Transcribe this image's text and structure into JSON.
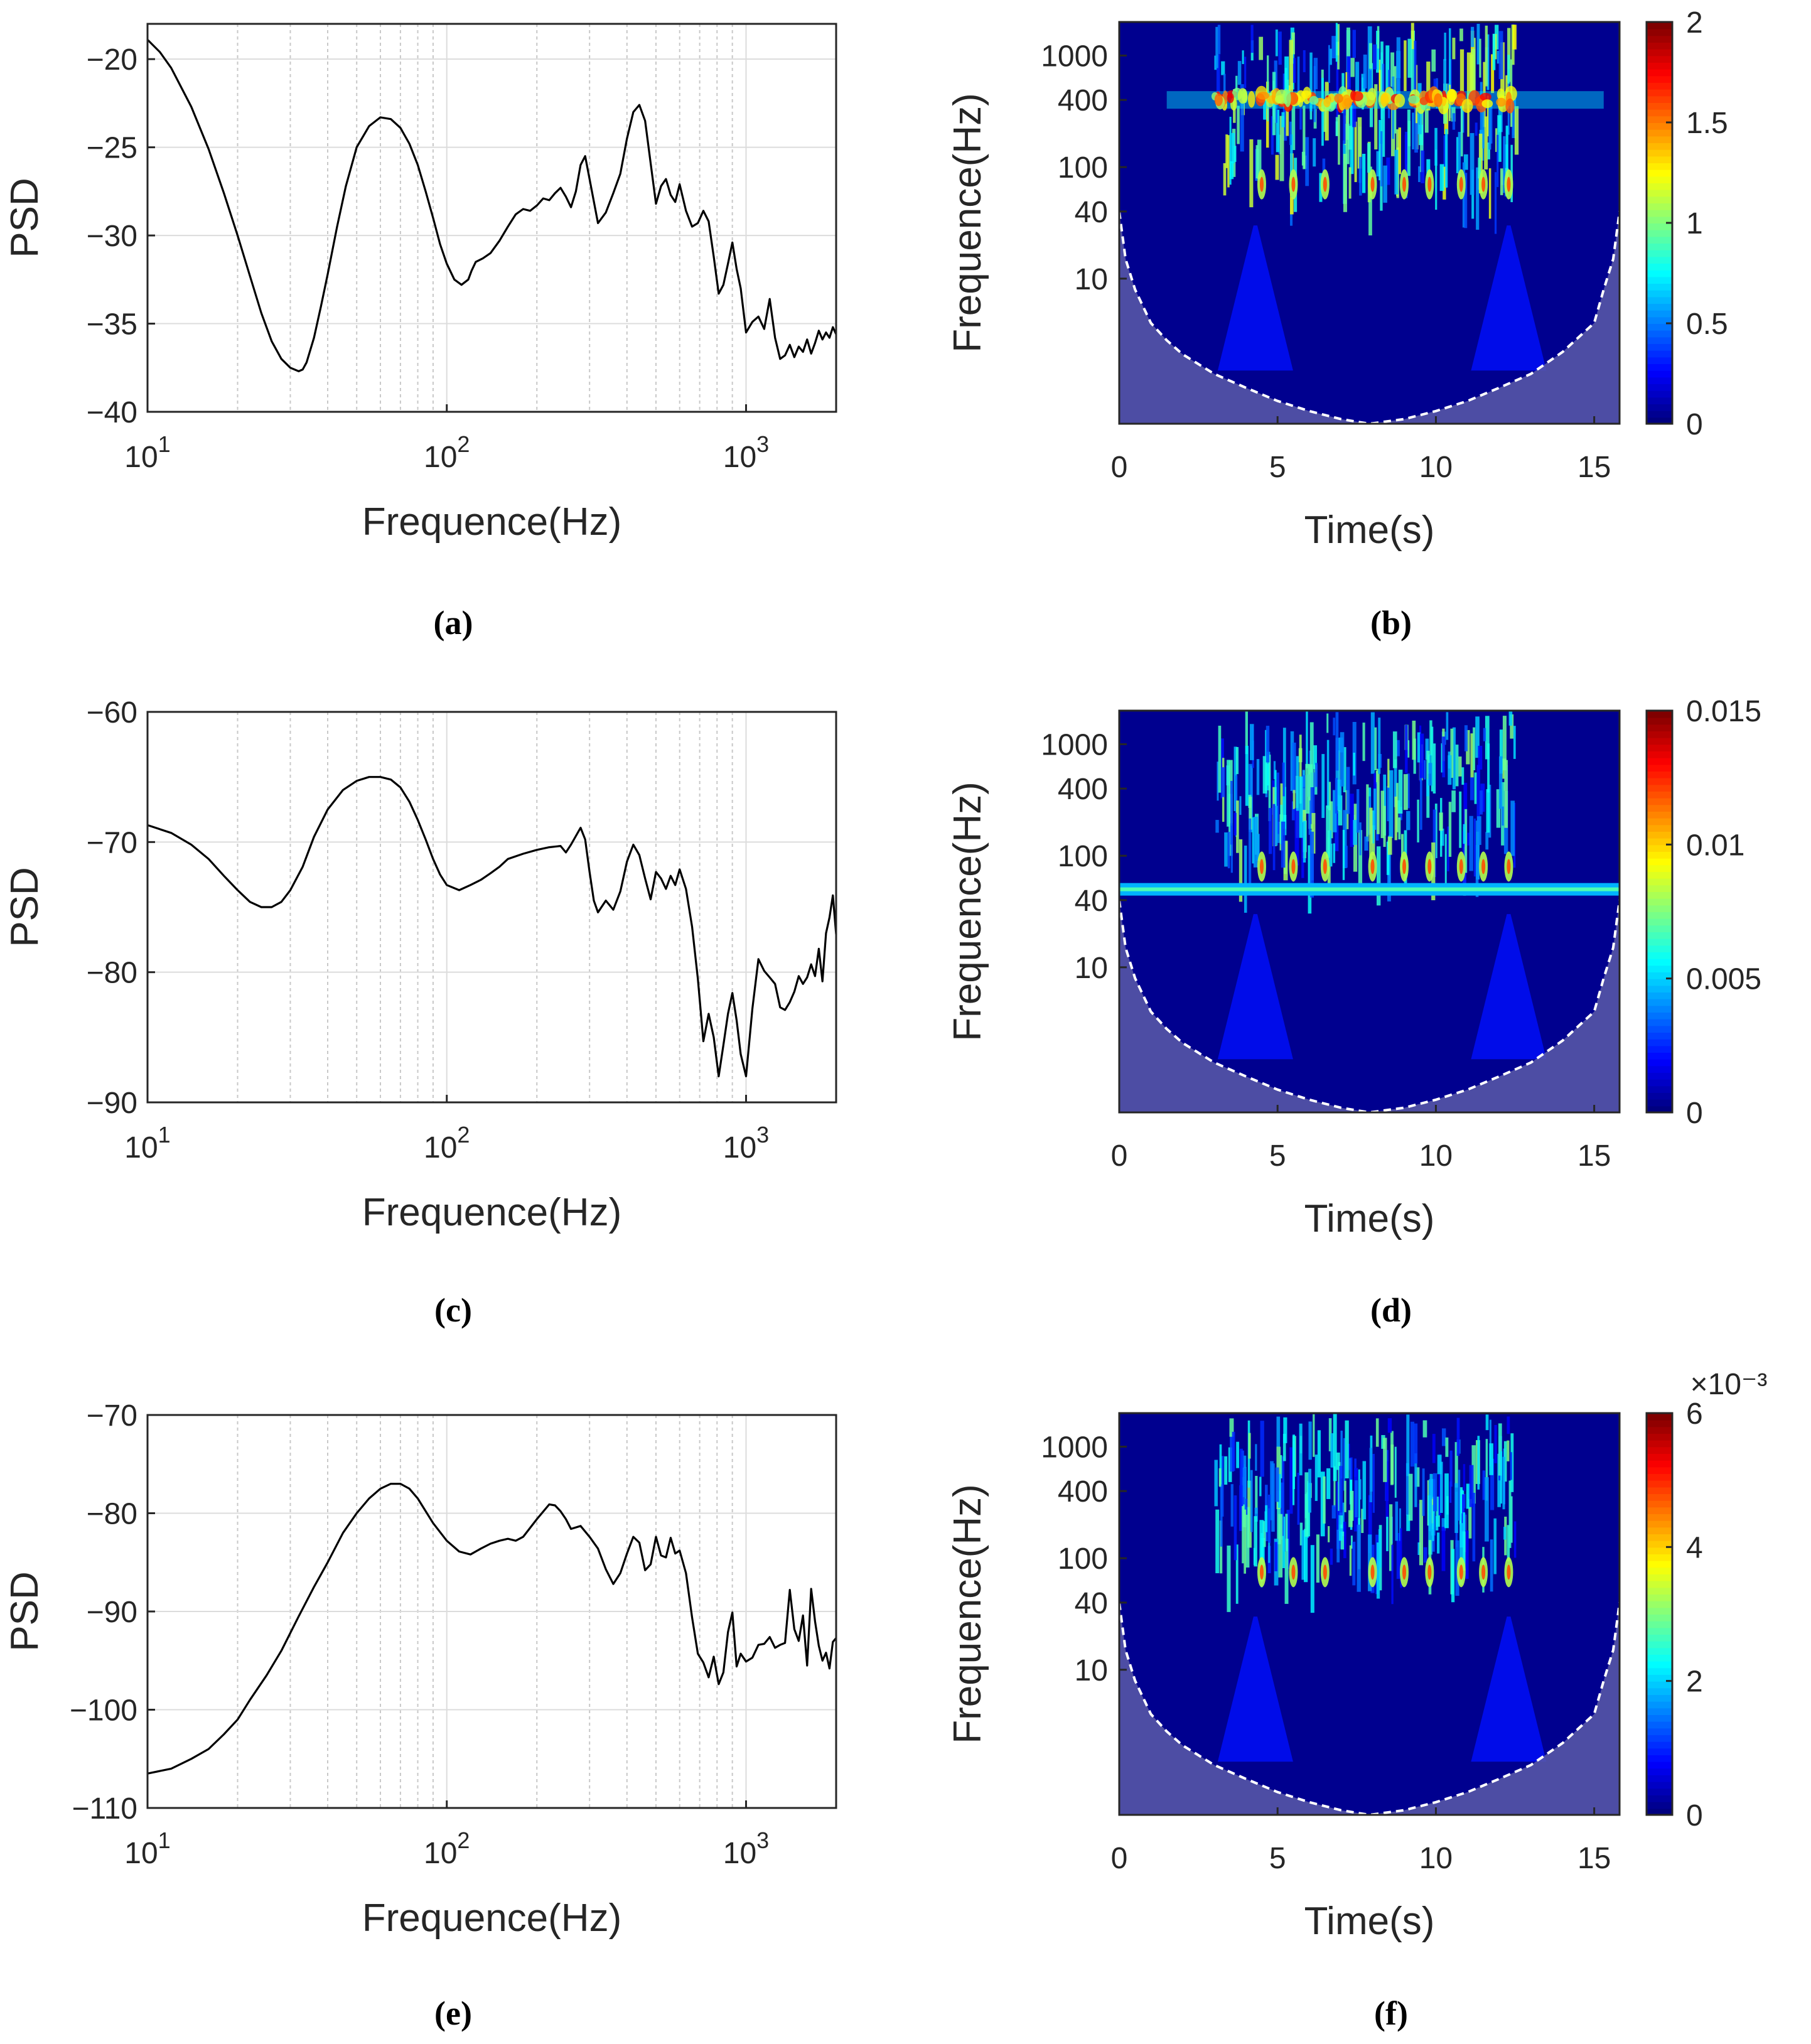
{
  "chart_data": [
    {
      "panel": "a",
      "caption": "(a)",
      "type": "line",
      "xscale": "log",
      "xlabel": "Frequence(Hz)",
      "ylabel": "PSD",
      "xlim": [
        10,
        2000
      ],
      "ylim": [
        -40,
        -18
      ],
      "xticks": [
        10,
        100,
        1000
      ],
      "xtick_labels": [
        "10^1",
        "10^2",
        "10^3"
      ],
      "yticks": [
        -40,
        -35,
        -30,
        -25,
        -20
      ],
      "ytick_labels": [
        "−40",
        "−35",
        "−30",
        "−25",
        "−20"
      ],
      "series": [
        {
          "name": "PSD",
          "x": [
            10,
            11,
            12,
            14,
            16,
            18,
            20,
            22,
            24,
            26,
            28,
            30,
            32,
            33,
            34,
            36,
            38,
            40,
            43,
            46,
            50,
            55,
            60,
            65,
            70,
            75,
            80,
            85,
            90,
            95,
            100,
            106,
            112,
            118,
            121,
            125,
            132,
            140,
            150,
            160,
            170,
            180,
            190,
            200,
            210,
            220,
            230,
            240,
            250,
            260,
            270,
            280,
            290,
            300,
            320,
            340,
            360,
            380,
            400,
            420,
            440,
            460,
            480,
            500,
            520,
            540,
            560,
            580,
            600,
            630,
            660,
            690,
            720,
            750,
            780,
            810,
            840,
            870,
            900,
            930,
            960,
            1000,
            1050,
            1100,
            1150,
            1200,
            1250,
            1300,
            1350,
            1400,
            1450,
            1500,
            1550,
            1600,
            1650,
            1700,
            1750,
            1800,
            1850,
            1900,
            1950,
            2000
          ],
          "y": [
            -18.9,
            -19.6,
            -20.5,
            -22.7,
            -25.1,
            -27.6,
            -30.0,
            -32.3,
            -34.4,
            -36.0,
            -37.0,
            -37.5,
            -37.7,
            -37.6,
            -37.2,
            -35.8,
            -34.0,
            -32.2,
            -29.5,
            -27.2,
            -25.0,
            -23.8,
            -23.3,
            -23.4,
            -23.9,
            -24.8,
            -26.0,
            -27.5,
            -29.0,
            -30.5,
            -31.6,
            -32.5,
            -32.8,
            -32.5,
            -32.0,
            -31.5,
            -31.3,
            -31.0,
            -30.3,
            -29.5,
            -28.8,
            -28.5,
            -28.6,
            -28.3,
            -27.9,
            -28.0,
            -27.6,
            -27.3,
            -27.8,
            -28.4,
            -27.5,
            -26.0,
            -25.5,
            -26.8,
            -29.3,
            -28.7,
            -27.6,
            -26.5,
            -24.5,
            -23.0,
            -22.6,
            -23.5,
            -25.9,
            -28.2,
            -27.2,
            -26.8,
            -27.7,
            -28.1,
            -27.1,
            -28.6,
            -29.5,
            -29.3,
            -28.6,
            -29.2,
            -31.2,
            -33.3,
            -32.8,
            -31.6,
            -30.4,
            -31.9,
            -33.0,
            -35.5,
            -34.9,
            -34.6,
            -35.3,
            -33.6,
            -35.8,
            -37.0,
            -36.8,
            -36.2,
            -36.9,
            -36.3,
            -36.6,
            -35.9,
            -36.7,
            -36.1,
            -35.4,
            -35.9,
            -35.5,
            -35.8,
            -35.2,
            -35.6
          ]
        }
      ]
    },
    {
      "panel": "b",
      "caption": "(b)",
      "type": "heatmap",
      "xlabel": "Time(s)",
      "ylabel": "Frequence(Hz)",
      "xlim": [
        0,
        15.8
      ],
      "xticks": [
        0,
        5,
        10,
        15
      ],
      "xtick_labels": [
        "0",
        "5",
        "10",
        "15"
      ],
      "yscale": "log",
      "ylim": [
        0.5,
        2000
      ],
      "yticks": [
        10,
        40,
        100,
        400,
        1000
      ],
      "ytick_labels": [
        "10",
        "40",
        "100",
        "400",
        "1000"
      ],
      "colorbar": {
        "colormap": "jet",
        "min": 0,
        "max": 2,
        "ticks": [
          0,
          0.5,
          1,
          1.5,
          2
        ],
        "tick_labels": [
          "0",
          "0.5",
          "1",
          "1.5",
          "2"
        ],
        "exponent_label": ""
      },
      "highlights": {
        "band_low": 40,
        "band_high": 2000,
        "band_start": 3,
        "band_end": 12.5,
        "intensity": 0.35,
        "pulse_times": [
          4.5,
          5.5,
          6.5,
          8.0,
          9.0,
          9.8,
          10.8,
          11.5,
          12.3
        ],
        "pulse_freq": 70,
        "secondary_band": 400
      },
      "coi": {
        "t": [
          0,
          0.2,
          0.5,
          1,
          1.5,
          2,
          3,
          4,
          5,
          6,
          7,
          7.9,
          9,
          10,
          11,
          12,
          13,
          14,
          15,
          15.3,
          15.6,
          15.8
        ],
        "f": [
          40,
          15,
          8,
          4,
          2.8,
          2.1,
          1.4,
          1.05,
          0.8,
          0.65,
          0.55,
          0.5,
          0.55,
          0.65,
          0.8,
          1.05,
          1.4,
          2.2,
          4,
          8,
          15,
          40
        ]
      }
    },
    {
      "panel": "c",
      "caption": "(c)",
      "type": "line",
      "xscale": "log",
      "xlabel": "Frequence(Hz)",
      "ylabel": "PSD",
      "xlim": [
        10,
        2000
      ],
      "ylim": [
        -90,
        -60
      ],
      "xticks": [
        10,
        100,
        1000
      ],
      "xtick_labels": [
        "10^1",
        "10^2",
        "10^3"
      ],
      "yticks": [
        -90,
        -80,
        -70,
        -60
      ],
      "ytick_labels": [
        "−90",
        "−80",
        "−70",
        "−60"
      ],
      "series": [
        {
          "name": "PSD",
          "x": [
            10,
            12,
            14,
            16,
            18,
            20,
            22,
            24,
            26,
            28,
            30,
            33,
            36,
            40,
            45,
            50,
            55,
            60,
            65,
            70,
            75,
            80,
            85,
            90,
            95,
            100,
            110,
            120,
            130,
            140,
            150,
            160,
            180,
            200,
            220,
            240,
            250,
            260,
            280,
            290,
            300,
            310,
            320,
            340,
            360,
            380,
            400,
            420,
            440,
            460,
            480,
            500,
            520,
            540,
            560,
            580,
            600,
            630,
            660,
            690,
            720,
            750,
            780,
            810,
            840,
            870,
            900,
            930,
            960,
            1000,
            1050,
            1100,
            1150,
            1200,
            1250,
            1300,
            1350,
            1400,
            1450,
            1500,
            1550,
            1600,
            1650,
            1700,
            1750,
            1800,
            1850,
            1900,
            1950,
            2000
          ],
          "y": [
            -68.7,
            -69.3,
            -70.2,
            -71.3,
            -72.6,
            -73.7,
            -74.6,
            -75.0,
            -75.0,
            -74.6,
            -73.7,
            -71.9,
            -69.6,
            -67.5,
            -66.0,
            -65.3,
            -65.0,
            -65.0,
            -65.2,
            -65.8,
            -66.9,
            -68.3,
            -69.8,
            -71.3,
            -72.5,
            -73.3,
            -73.7,
            -73.3,
            -72.9,
            -72.4,
            -71.9,
            -71.3,
            -70.9,
            -70.6,
            -70.4,
            -70.3,
            -70.8,
            -70.2,
            -68.9,
            -69.8,
            -72.3,
            -74.5,
            -75.4,
            -74.5,
            -75.2,
            -73.8,
            -71.5,
            -70.2,
            -71.0,
            -72.8,
            -74.4,
            -72.3,
            -72.8,
            -73.6,
            -72.6,
            -73.3,
            -72.1,
            -73.6,
            -76.5,
            -80.5,
            -85.3,
            -83.2,
            -85.0,
            -88.0,
            -85.6,
            -83.2,
            -81.6,
            -83.7,
            -86.3,
            -88.0,
            -82.8,
            -79.0,
            -79.9,
            -80.4,
            -80.9,
            -82.7,
            -82.9,
            -82.3,
            -81.5,
            -80.3,
            -80.9,
            -80.4,
            -79.4,
            -80.3,
            -78.2,
            -80.7,
            -77.0,
            -75.8,
            -74.1,
            -77.1
          ]
        }
      ]
    },
    {
      "panel": "d",
      "caption": "(d)",
      "type": "heatmap",
      "xlabel": "Time(s)",
      "ylabel": "Frequence(Hz)",
      "xlim": [
        0,
        15.8
      ],
      "xticks": [
        0,
        5,
        10,
        15
      ],
      "xtick_labels": [
        "0",
        "5",
        "10",
        "15"
      ],
      "yscale": "log",
      "ylim": [
        0.5,
        2000
      ],
      "yticks": [
        10,
        40,
        100,
        400,
        1000
      ],
      "ytick_labels": [
        "10",
        "40",
        "100",
        "400",
        "1000"
      ],
      "colorbar": {
        "colormap": "jet",
        "min": 0,
        "max": 0.015,
        "ticks": [
          0,
          0.005,
          0.01,
          0.015
        ],
        "tick_labels": [
          "0",
          "0.005",
          "0.01",
          "0.015"
        ],
        "exponent_label": ""
      },
      "highlights": {
        "band_low": 60,
        "band_high": 2000,
        "band_start": 3,
        "band_end": 12.5,
        "intensity": 0.3,
        "pulse_times": [
          4.5,
          5.5,
          6.5,
          8.0,
          9.0,
          9.8,
          10.8,
          11.5,
          12.3
        ],
        "pulse_freq": 80,
        "steady_line_freq": 50
      },
      "coi": {
        "t": [
          0,
          0.2,
          0.5,
          1,
          1.5,
          2,
          3,
          4,
          5,
          6,
          7,
          7.9,
          9,
          10,
          11,
          12,
          13,
          14,
          15,
          15.3,
          15.6,
          15.8
        ],
        "f": [
          40,
          15,
          8,
          4,
          2.8,
          2.1,
          1.4,
          1.05,
          0.8,
          0.65,
          0.55,
          0.5,
          0.55,
          0.65,
          0.8,
          1.05,
          1.4,
          2.2,
          4,
          8,
          15,
          40
        ]
      }
    },
    {
      "panel": "e",
      "caption": "(e)",
      "type": "line",
      "xscale": "log",
      "xlabel": "Frequence(Hz)",
      "ylabel": "PSD",
      "xlim": [
        10,
        2000
      ],
      "ylim": [
        -110,
        -70
      ],
      "xticks": [
        10,
        100,
        1000
      ],
      "xtick_labels": [
        "10^1",
        "10^2",
        "10^3"
      ],
      "yticks": [
        -110,
        -100,
        -90,
        -80,
        -70
      ],
      "ytick_labels": [
        "−110",
        "−100",
        "−90",
        "−80",
        "−70"
      ],
      "series": [
        {
          "name": "PSD",
          "x": [
            10,
            12,
            14,
            16,
            18,
            20,
            22,
            25,
            28,
            32,
            36,
            40,
            45,
            50,
            55,
            60,
            65,
            70,
            75,
            80,
            90,
            100,
            110,
            120,
            130,
            140,
            150,
            160,
            170,
            180,
            200,
            220,
            230,
            240,
            250,
            260,
            280,
            300,
            320,
            340,
            360,
            380,
            400,
            420,
            440,
            460,
            480,
            500,
            520,
            540,
            560,
            580,
            600,
            630,
            660,
            690,
            720,
            750,
            780,
            810,
            840,
            870,
            900,
            930,
            960,
            1000,
            1050,
            1100,
            1150,
            1200,
            1250,
            1300,
            1350,
            1400,
            1450,
            1500,
            1550,
            1600,
            1650,
            1700,
            1750,
            1800,
            1850,
            1900,
            1950,
            2000
          ],
          "y": [
            -106.5,
            -106.0,
            -105.0,
            -104.0,
            -102.5,
            -101.0,
            -99.0,
            -96.5,
            -94.0,
            -90.5,
            -87.5,
            -85.0,
            -82.0,
            -80.0,
            -78.5,
            -77.5,
            -77.0,
            -77.0,
            -77.5,
            -78.5,
            -81.0,
            -82.8,
            -83.9,
            -84.2,
            -83.6,
            -83.1,
            -82.8,
            -82.6,
            -82.8,
            -82.4,
            -80.6,
            -79.1,
            -79.2,
            -79.8,
            -80.6,
            -81.6,
            -81.3,
            -82.4,
            -83.6,
            -85.7,
            -87.2,
            -86.1,
            -84.1,
            -82.4,
            -83.0,
            -85.8,
            -85.2,
            -82.4,
            -84.3,
            -84.5,
            -82.5,
            -84.1,
            -83.8,
            -86.1,
            -90.6,
            -94.3,
            -95.2,
            -96.7,
            -94.6,
            -97.4,
            -96.2,
            -92.1,
            -90.1,
            -95.6,
            -94.3,
            -95.1,
            -94.7,
            -93.4,
            -93.3,
            -92.6,
            -93.7,
            -93.4,
            -93.2,
            -87.8,
            -91.8,
            -93.0,
            -90.4,
            -95.5,
            -87.7,
            -91.0,
            -93.5,
            -95.0,
            -94.2,
            -95.8,
            -93.1,
            -92.7
          ]
        }
      ]
    },
    {
      "panel": "f",
      "caption": "(f)",
      "type": "heatmap",
      "xlabel": "Time(s)",
      "ylabel": "Frequence(Hz)",
      "xlim": [
        0,
        15.8
      ],
      "xticks": [
        0,
        5,
        10,
        15
      ],
      "xtick_labels": [
        "0",
        "5",
        "10",
        "15"
      ],
      "yscale": "log",
      "ylim": [
        0.5,
        2000
      ],
      "yticks": [
        10,
        40,
        100,
        400,
        1000
      ],
      "ytick_labels": [
        "10",
        "40",
        "100",
        "400",
        "1000"
      ],
      "colorbar": {
        "colormap": "jet",
        "min": 0,
        "max": 6,
        "ticks": [
          0,
          2,
          4,
          6
        ],
        "tick_labels": [
          "0",
          "2",
          "4",
          "6"
        ],
        "exponent_label": "×10⁻³"
      },
      "highlights": {
        "band_low": 60,
        "band_high": 2000,
        "band_start": 3,
        "band_end": 12.5,
        "intensity": 0.28,
        "pulse_times": [
          4.5,
          5.5,
          6.5,
          8.0,
          9.0,
          9.8,
          10.8,
          11.5,
          12.3
        ],
        "pulse_freq": 75
      },
      "coi": {
        "t": [
          0,
          0.2,
          0.5,
          1,
          1.5,
          2,
          3,
          4,
          5,
          6,
          7,
          7.9,
          9,
          10,
          11,
          12,
          13,
          14,
          15,
          15.3,
          15.6,
          15.8
        ],
        "f": [
          40,
          15,
          8,
          4,
          2.8,
          2.1,
          1.4,
          1.05,
          0.8,
          0.65,
          0.55,
          0.5,
          0.55,
          0.65,
          0.8,
          1.05,
          1.4,
          2.2,
          4,
          8,
          15,
          40
        ]
      }
    }
  ],
  "colors": {
    "line": "#000000",
    "heat_background": "#00008f",
    "coi_shade": "#5a5aa8",
    "coi_line": "#ffffff",
    "axis": "#262626",
    "grid": "#dcdcdc"
  }
}
